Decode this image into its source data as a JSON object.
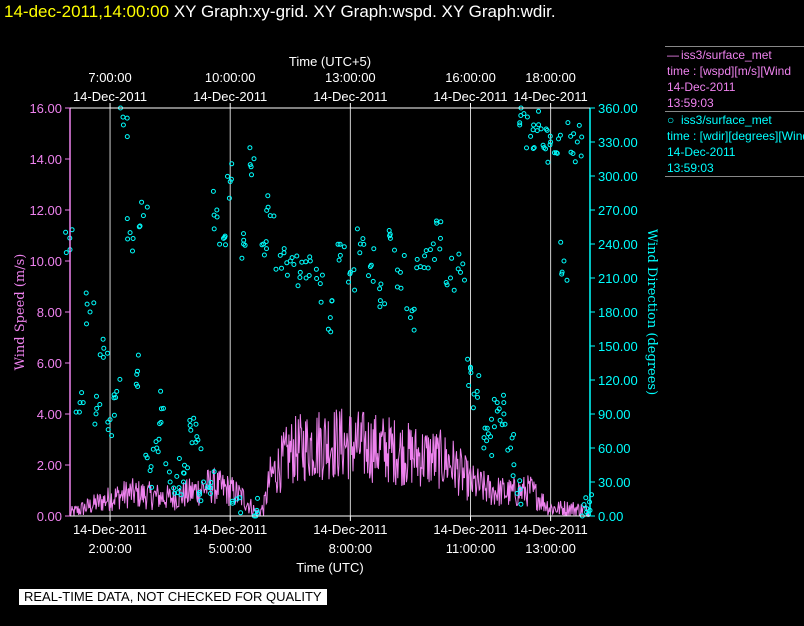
{
  "title": {
    "time": "14-dec-2011,14:00:00",
    "graphs": "XY Graph:xy-grid.  XY Graph:wspd.  XY Graph:wdir."
  },
  "qa_note": "REAL-TIME DATA, NOT CHECKED FOR QUALITY",
  "legend": [
    {
      "symbol": "line",
      "label": "iss3/surface_met",
      "var": "time : [wspd][m/s][Wind",
      "date": "14-Dec-2011",
      "time": "13:59:03",
      "color": "#ee82ee"
    },
    {
      "symbol": "circle",
      "label": "iss3/surface_met",
      "var": "time : [wdir][degrees][Wind",
      "date": "14-Dec-2011",
      "time": "13:59:03",
      "color": "#00ffff"
    }
  ],
  "chart_data": {
    "type": "scatter",
    "xlabel_bottom": "Time (UTC)",
    "xlabel_top": "Time (UTC+5)",
    "ylabel_left": "Wind Speed (m/s)",
    "ylabel_right": "Wind Direction (degrees)",
    "x_range": [
      "2011-12-14 01:00",
      "2011-12-14 13:59"
    ],
    "ylim_left": [
      0,
      16
    ],
    "ylim_right": [
      0,
      360
    ],
    "grid": "vertical lines at labelled times",
    "bottom_ticks": [
      {
        "t": "02:00",
        "date": "14-Dec-2011",
        "time": "2:00:00"
      },
      {
        "t": "05:00",
        "date": "14-Dec-2011",
        "time": "5:00:00"
      },
      {
        "t": "08:00",
        "date": "14-Dec-2011",
        "time": "8:00:00"
      },
      {
        "t": "11:00",
        "date": "14-Dec-2011",
        "time": "11:00:00"
      },
      {
        "t": "13:00",
        "date": "14-Dec-2011",
        "time": "13:00:00"
      }
    ],
    "top_ticks": [
      {
        "t": "02:00",
        "time": "7:00:00",
        "date": "14-Dec-2011"
      },
      {
        "t": "05:00",
        "time": "10:00:00",
        "date": "14-Dec-2011"
      },
      {
        "t": "08:00",
        "time": "13:00:00",
        "date": "14-Dec-2011"
      },
      {
        "t": "11:00",
        "time": "16:00:00",
        "date": "14-Dec-2011"
      },
      {
        "t": "13:00",
        "time": "18:00:00",
        "date": "14-Dec-2011"
      }
    ],
    "left_ticks": [
      "0.00",
      "2.00",
      "4.00",
      "6.00",
      "8.00",
      "10.00",
      "12.00",
      "14.00",
      "16.00"
    ],
    "right_ticks": [
      "0.00",
      "30.00",
      "60.00",
      "90.00",
      "120.00",
      "150.00",
      "180.00",
      "210.00",
      "240.00",
      "270.00",
      "300.00",
      "330.00",
      "360.00"
    ],
    "series": [
      {
        "name": "iss3/surface_met time : [wspd][m/s]",
        "axis": "left",
        "style": "line",
        "color": "#ee82ee",
        "x": [
          "01:00",
          "01:30",
          "02:00",
          "02:30",
          "03:00",
          "03:30",
          "04:00",
          "04:30",
          "05:00",
          "05:20",
          "05:40",
          "05:50",
          "06:00",
          "06:30",
          "07:00",
          "07:30",
          "08:00",
          "08:30",
          "09:00",
          "09:30",
          "10:00",
          "10:30",
          "11:00",
          "11:30",
          "12:00",
          "12:30",
          "13:00",
          "13:30",
          "13:59"
        ],
        "y": [
          0.1,
          0.4,
          0.7,
          0.9,
          0.8,
          0.7,
          0.9,
          1.2,
          1.0,
          0.7,
          0.1,
          0.3,
          1.5,
          2.5,
          2.8,
          2.9,
          2.8,
          2.7,
          2.6,
          2.4,
          2.3,
          2.1,
          1.3,
          1.0,
          0.9,
          1.0,
          0.3,
          0.3,
          0.2
        ]
      },
      {
        "name": "iss3/surface_met time : [wdir][degrees]",
        "axis": "right",
        "style": "markers",
        "color": "#00ffff",
        "x": [
          "01:00",
          "01:15",
          "01:30",
          "01:40",
          "01:50",
          "02:00",
          "02:10",
          "02:20",
          "02:30",
          "02:40",
          "02:50",
          "03:00",
          "03:10",
          "03:20",
          "03:30",
          "03:40",
          "03:50",
          "04:00",
          "04:10",
          "04:20",
          "04:30",
          "04:40",
          "04:50",
          "05:00",
          "05:10",
          "05:20",
          "05:30",
          "05:40",
          "05:50",
          "06:00",
          "06:15",
          "06:30",
          "06:45",
          "07:00",
          "07:15",
          "07:30",
          "07:45",
          "08:00",
          "08:15",
          "08:30",
          "08:45",
          "09:00",
          "09:15",
          "09:30",
          "09:45",
          "10:00",
          "10:15",
          "10:30",
          "10:45",
          "11:00",
          "11:10",
          "11:20",
          "11:30",
          "11:40",
          "11:50",
          "12:00",
          "12:10",
          "12:20",
          "12:30",
          "12:40",
          "12:50",
          "13:00",
          "13:10",
          "13:20",
          "13:30",
          "13:40",
          "13:50",
          "13:59"
        ],
        "y": [
          235,
          100,
          180,
          95,
          140,
          85,
          110,
          345,
          250,
          125,
          265,
          40,
          60,
          95,
          30,
          35,
          30,
          80,
          70,
          30,
          25,
          270,
          245,
          295,
          15,
          240,
          310,
          5,
          240,
          265,
          230,
          225,
          215,
          225,
          205,
          175,
          230,
          215,
          240,
          220,
          190,
          245,
          215,
          175,
          220,
          235,
          245,
          210,
          215,
          130,
          110,
          60,
          70,
          100,
          90,
          60,
          20,
          355,
          335,
          340,
          325,
          330,
          320,
          225,
          335,
          330,
          10,
          5
        ]
      }
    ]
  }
}
